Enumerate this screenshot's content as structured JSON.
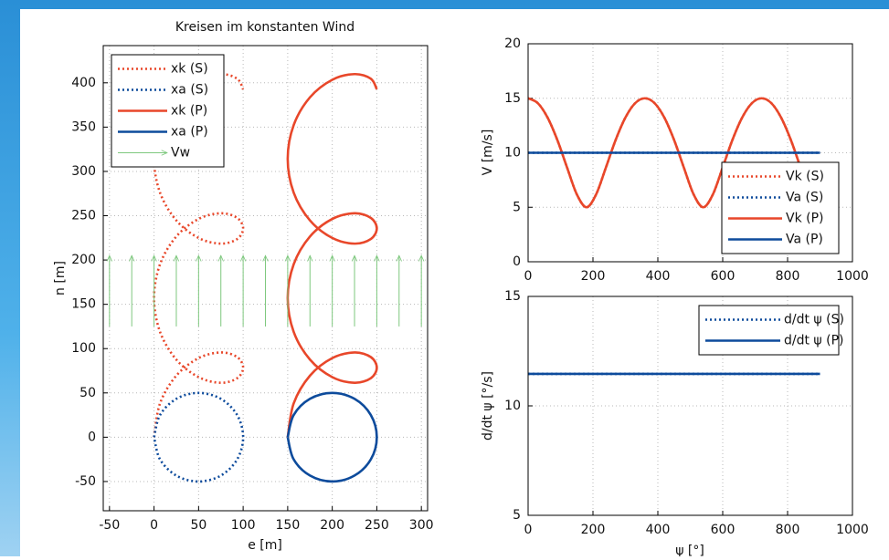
{
  "chart_data": [
    {
      "type": "line",
      "title": "Kreisen im konstanten Wind",
      "xlabel": "e [m]",
      "ylabel": "n [m]",
      "xlim": [
        -57,
        307
      ],
      "xticks": [
        -50,
        0,
        50,
        100,
        150,
        200,
        250,
        300
      ],
      "ylim": [
        -83,
        442
      ],
      "yticks": [
        -50,
        0,
        50,
        100,
        150,
        200,
        250,
        300,
        350,
        400
      ],
      "grid": true,
      "legend": "upper left",
      "series": [
        {
          "name": "xk (S)",
          "color": "#e8472a",
          "style": "dotted",
          "x": [
            0,
            6.7,
            25,
            50,
            75,
            93.3,
            100,
            93.3,
            75,
            50,
            25,
            6.7,
            0,
            6.7,
            25,
            50,
            75,
            93.3,
            100,
            93.3,
            75,
            50,
            25,
            6.7,
            0,
            6.7,
            25,
            50,
            75,
            93.3,
            100
          ],
          "y": [
            0,
            38.09,
            69.48,
            89.27,
            95.66,
            90.45,
            78.54,
            66.63,
            61.42,
            67.81,
            87.6,
            118.99,
            157.08,
            195.17,
            226.56,
            246.35,
            252.74,
            247.53,
            235.62,
            223.71,
            218.5,
            224.89,
            244.68,
            276.07,
            314.16,
            352.25,
            383.64,
            403.43,
            409.82,
            404.61,
            392.7
          ]
        },
        {
          "name": "xa (S)",
          "color": "#0d4b9c",
          "style": "dotted",
          "x": [
            0,
            6.7,
            25,
            50,
            75,
            93.3,
            100,
            93.3,
            75,
            50,
            25,
            6.7,
            0
          ],
          "y": [
            0,
            25,
            43.3,
            50,
            43.3,
            25,
            0,
            -25,
            -43.3,
            -50,
            -43.3,
            -25,
            0
          ]
        },
        {
          "name": "xk (P)",
          "color": "#e8472a",
          "style": "solid",
          "x": [
            150,
            156.7,
            175,
            200,
            225,
            243.3,
            250,
            243.3,
            225,
            200,
            175,
            156.7,
            150,
            156.7,
            175,
            200,
            225,
            243.3,
            250,
            243.3,
            225,
            200,
            175,
            156.7,
            150,
            156.7,
            175,
            200,
            225,
            243.3,
            250
          ],
          "y": [
            0,
            38.09,
            69.48,
            89.27,
            95.66,
            90.45,
            78.54,
            66.63,
            61.42,
            67.81,
            87.6,
            118.99,
            157.08,
            195.17,
            226.56,
            246.35,
            252.74,
            247.53,
            235.62,
            223.71,
            218.5,
            224.89,
            244.68,
            276.07,
            314.16,
            352.25,
            383.64,
            403.43,
            409.82,
            404.61,
            392.7
          ]
        },
        {
          "name": "xa (P)",
          "color": "#0d4b9c",
          "style": "solid",
          "x": [
            150,
            156.7,
            175,
            200,
            225,
            243.3,
            250,
            243.3,
            225,
            200,
            175,
            156.7,
            150
          ],
          "y": [
            0,
            25,
            43.3,
            50,
            43.3,
            25,
            0,
            -25,
            -43.3,
            -50,
            -43.3,
            -25,
            0
          ]
        },
        {
          "name": "Vw",
          "type": "quiver",
          "color": "#7ec87e",
          "style": "solid",
          "x": [
            -50,
            -25,
            0,
            25,
            50,
            75,
            100,
            125,
            150,
            175,
            200,
            225,
            250,
            275,
            300
          ],
          "y": 125,
          "v": 80
        }
      ]
    },
    {
      "type": "line",
      "ylabel": "V [m/s]",
      "xlim": [
        0,
        1000
      ],
      "xticks": [
        0,
        200,
        400,
        600,
        800,
        1000
      ],
      "ylim": [
        0,
        20
      ],
      "yticks": [
        0,
        5,
        10,
        15,
        20
      ],
      "grid": true,
      "legend": "lower right",
      "x": [
        0,
        30,
        60,
        90,
        120,
        150,
        180,
        210,
        240,
        270,
        300,
        330,
        360,
        390,
        420,
        450,
        480,
        510,
        540,
        570,
        600,
        630,
        660,
        690,
        720,
        750,
        780,
        810,
        840,
        870,
        900
      ],
      "series": [
        {
          "name": "Vk (S)",
          "color": "#e8472a",
          "style": "dotted",
          "values": [
            15,
            14.55,
            13.23,
            11.18,
            8.66,
            6.2,
            5,
            6.2,
            8.66,
            11.18,
            13.23,
            14.55,
            15,
            14.55,
            13.23,
            11.18,
            8.66,
            6.2,
            5,
            6.2,
            8.66,
            11.18,
            13.23,
            14.55,
            15,
            14.55,
            13.23,
            11.18,
            8.66,
            6.2,
            5
          ]
        },
        {
          "name": "Va (S)",
          "color": "#0d4b9c",
          "style": "dotted",
          "values": [
            10,
            10,
            10,
            10,
            10,
            10,
            10,
            10,
            10,
            10,
            10,
            10,
            10,
            10,
            10,
            10,
            10,
            10,
            10,
            10,
            10,
            10,
            10,
            10,
            10,
            10,
            10,
            10,
            10,
            10,
            10
          ]
        },
        {
          "name": "Vk (P)",
          "color": "#e8472a",
          "style": "solid",
          "values": [
            15,
            14.55,
            13.23,
            11.18,
            8.66,
            6.2,
            5,
            6.2,
            8.66,
            11.18,
            13.23,
            14.55,
            15,
            14.55,
            13.23,
            11.18,
            8.66,
            6.2,
            5,
            6.2,
            8.66,
            11.18,
            13.23,
            14.55,
            15,
            14.55,
            13.23,
            11.18,
            8.66,
            6.2,
            5
          ]
        },
        {
          "name": "Va (P)",
          "color": "#0d4b9c",
          "style": "solid",
          "values": [
            10,
            10,
            10,
            10,
            10,
            10,
            10,
            10,
            10,
            10,
            10,
            10,
            10,
            10,
            10,
            10,
            10,
            10,
            10,
            10,
            10,
            10,
            10,
            10,
            10,
            10,
            10,
            10,
            10,
            10,
            10
          ]
        }
      ]
    },
    {
      "type": "line",
      "xlabel": "ψ [°]",
      "ylabel": "d/dt ψ [°/s]",
      "xlim": [
        0,
        1000
      ],
      "xticks": [
        0,
        200,
        400,
        600,
        800,
        1000
      ],
      "ylim": [
        5,
        15
      ],
      "yticks": [
        5,
        10,
        15
      ],
      "grid": true,
      "legend": "upper right",
      "x": [
        0,
        900
      ],
      "series": [
        {
          "name": "d/dt ψ (S)",
          "color": "#0d4b9c",
          "style": "dotted",
          "values": [
            11.46,
            11.46
          ]
        },
        {
          "name": "d/dt ψ (P)",
          "color": "#0d4b9c",
          "style": "solid",
          "values": [
            11.46,
            11.46
          ]
        }
      ]
    }
  ]
}
